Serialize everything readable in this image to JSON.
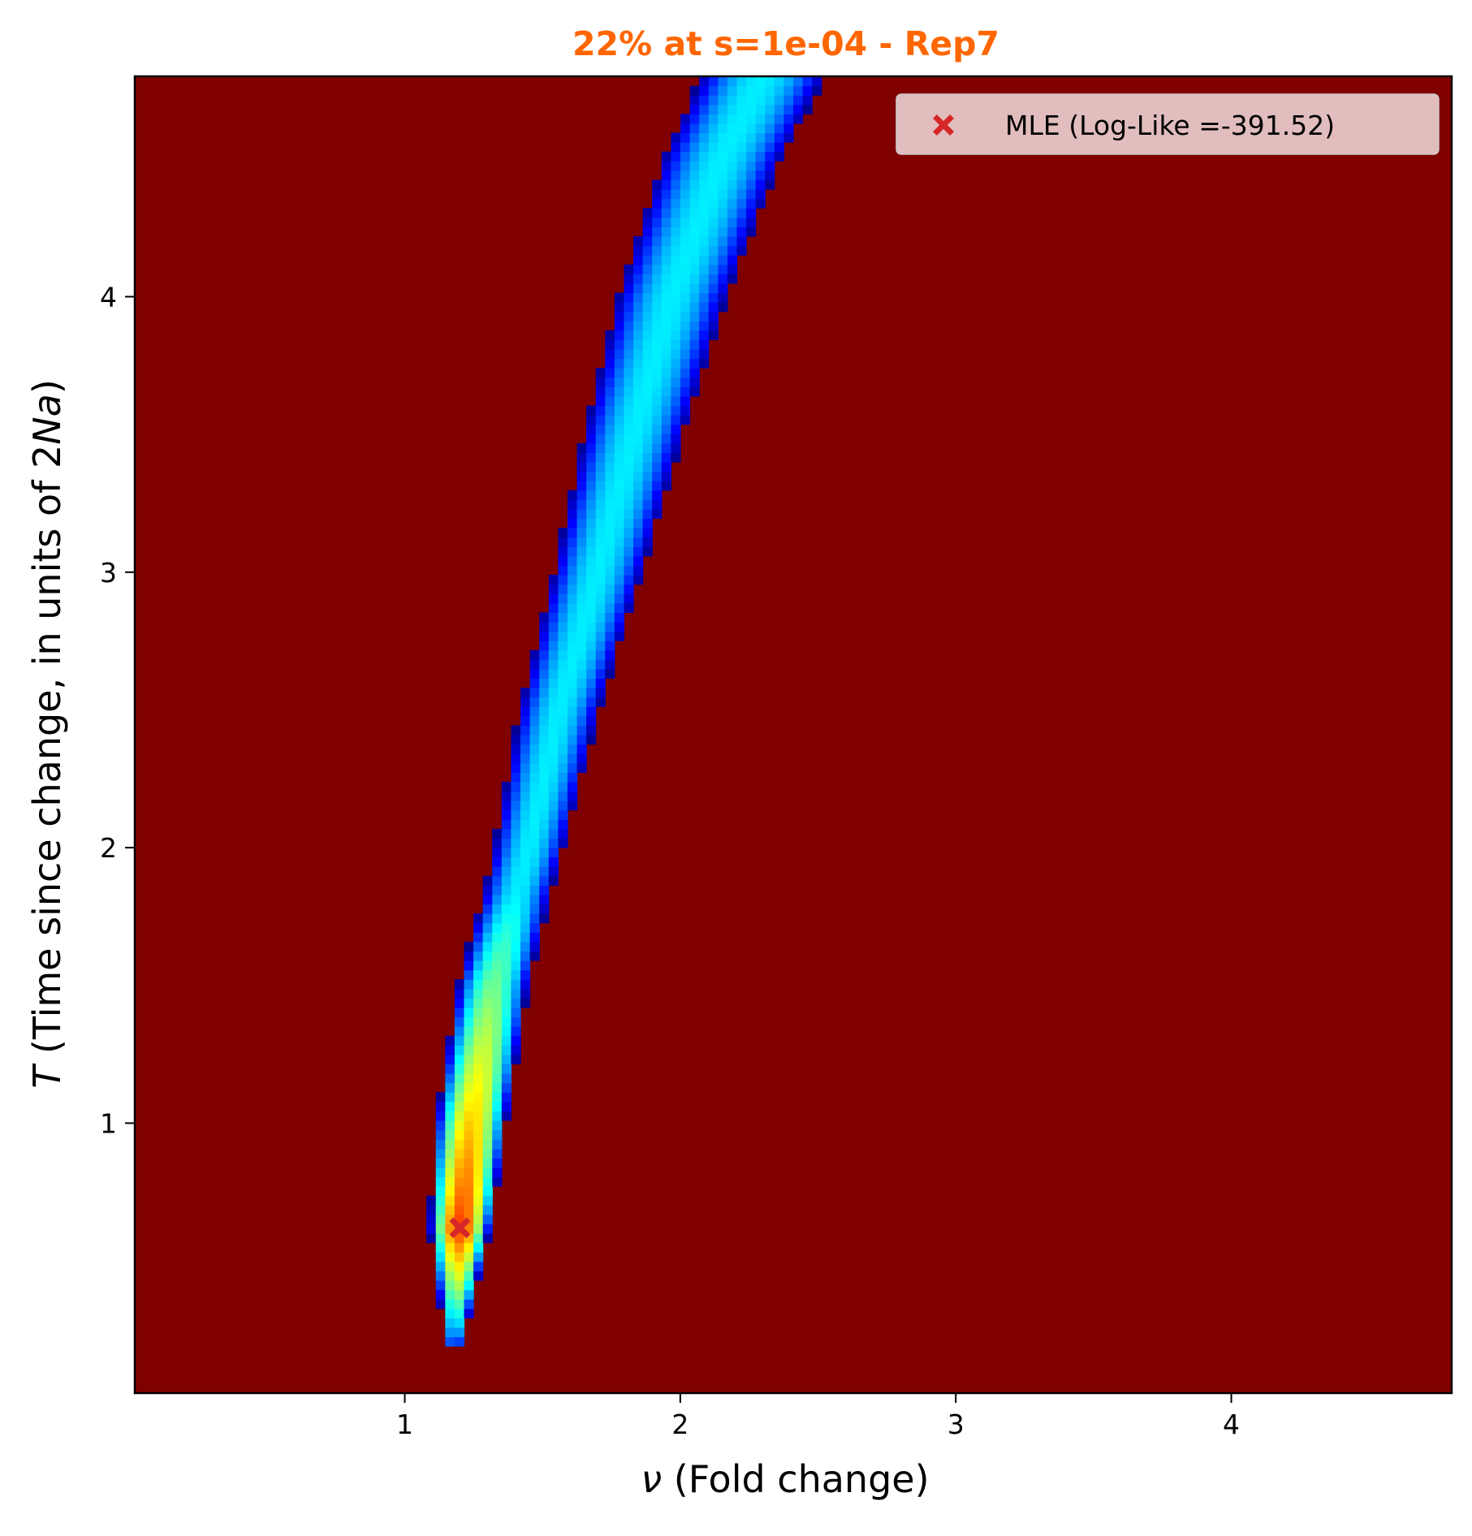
{
  "chart_data": {
    "type": "heatmap",
    "title": "22% at s=1e-04 - Rep7",
    "title_color": "#ff6600",
    "xlabel_symbol": "ν",
    "xlabel_rest": " (Fold change)",
    "ylabel_symbol": "T",
    "ylabel_middle": " (Time since change, in units of 2",
    "ylabel_italic": "Na",
    "ylabel_end": ")",
    "xlim": [
      0.02,
      4.8
    ],
    "ylim": [
      0.02,
      4.8
    ],
    "xticks": [
      1,
      2,
      3,
      4
    ],
    "yticks": [
      1,
      2,
      3,
      4
    ],
    "colormap": "jet",
    "background_color": "#800000",
    "ridge": {
      "description_points": [
        {
          "T": 0.22,
          "nu": 1.18
        },
        {
          "T": 0.62,
          "nu": 1.2
        },
        {
          "T": 1.0,
          "nu": 1.24
        },
        {
          "T": 1.5,
          "nu": 1.32
        },
        {
          "T": 2.0,
          "nu": 1.45
        },
        {
          "T": 2.5,
          "nu": 1.56
        },
        {
          "T": 3.0,
          "nu": 1.7
        },
        {
          "T": 3.5,
          "nu": 1.83
        },
        {
          "T": 4.0,
          "nu": 1.97
        },
        {
          "T": 4.5,
          "nu": 2.15
        },
        {
          "T": 4.8,
          "nu": 2.3
        }
      ]
    },
    "mle": {
      "nu": 1.2,
      "T": 0.62,
      "marker": "X",
      "color": "#d62728",
      "legend_label": "MLE (Log-Like =-391.52)"
    },
    "legend_position": "upper-right"
  }
}
